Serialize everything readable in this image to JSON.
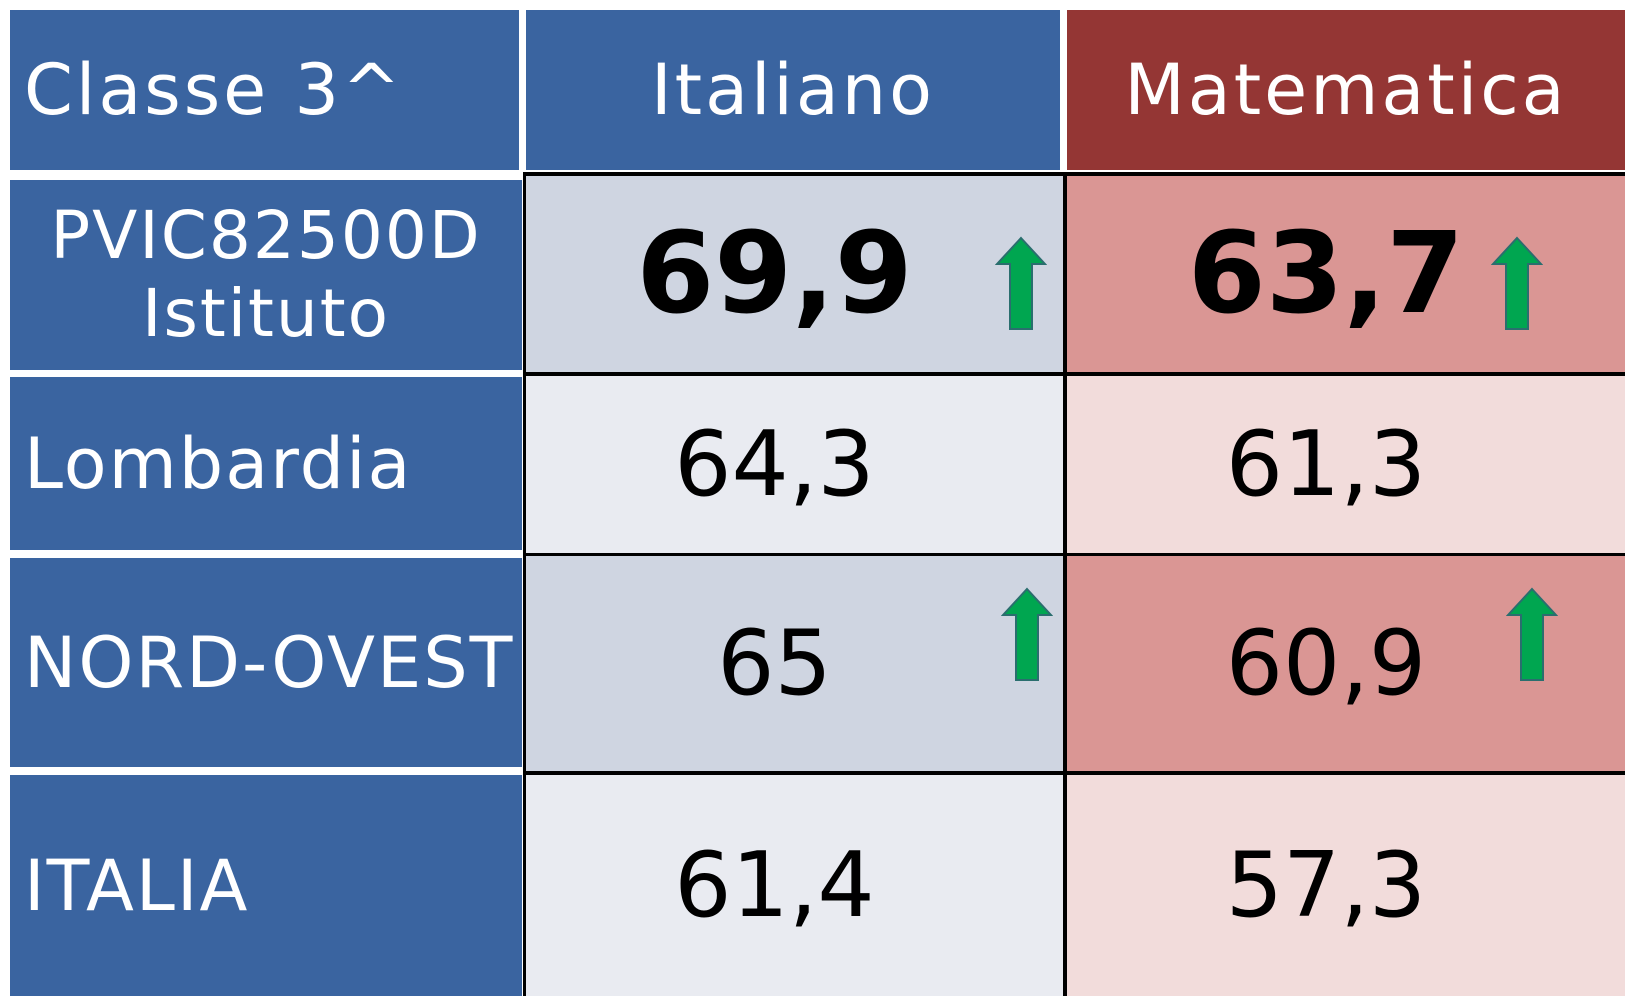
{
  "table": {
    "header": [
      "Classe 3^",
      "Italiano",
      "Matematica"
    ],
    "rows": [
      {
        "label": [
          "PVIC82500D",
          "Istituto"
        ],
        "cells": [
          "69,9",
          "63,7"
        ]
      },
      {
        "label": [
          "Lombardia"
        ],
        "cells": [
          "64,3",
          "61,3"
        ]
      },
      {
        "label": [
          "NORD-OVEST"
        ],
        "cells": [
          "65",
          "60,9"
        ]
      },
      {
        "label": [
          "ITALIA"
        ],
        "cells": [
          "61,4",
          "57,3"
        ]
      }
    ]
  }
}
